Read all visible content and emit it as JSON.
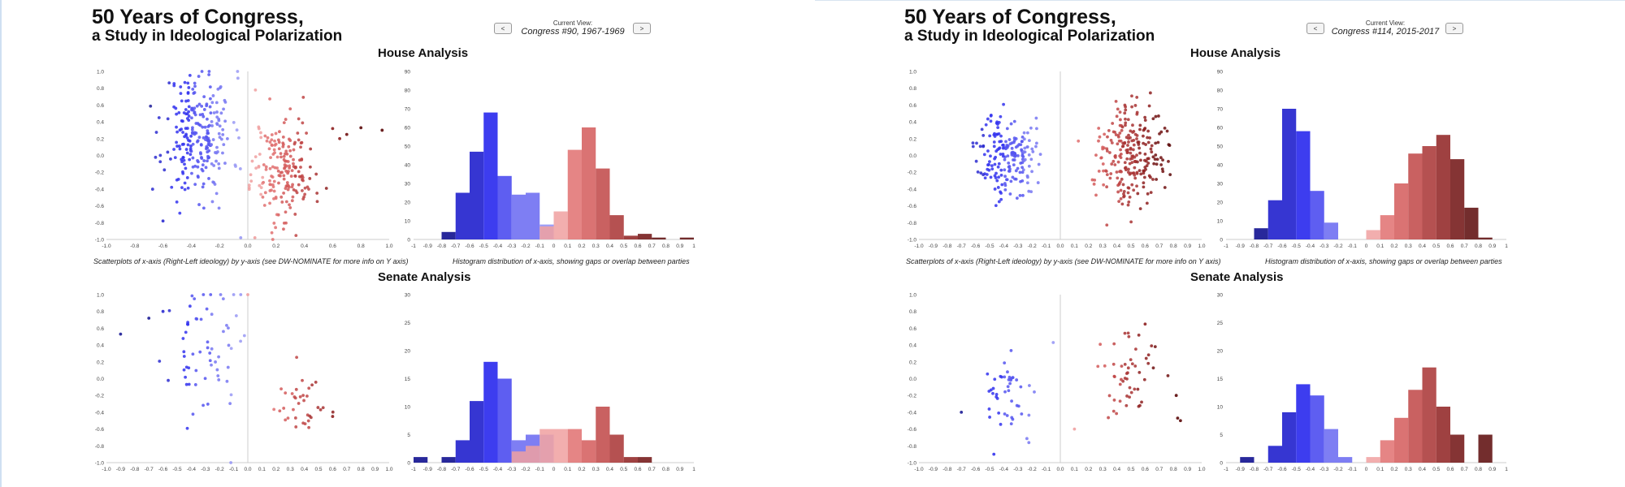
{
  "panels": [
    {
      "title_line1": "50 Years of Congress,",
      "title_line2": "a Study in Ideological Polarization",
      "nav": {
        "prev_label": "<",
        "next_label": ">",
        "current_view_label": "Current View:",
        "current_view_value": "Congress #90, 1967-1969"
      },
      "house_heading": "House Analysis",
      "senate_heading": "Senate Analysis",
      "scatter_caption": "Scatterplots of x-axis (Right-Left ideology) by y-axis (see DW-NOMINATE for more info on Y axis)",
      "hist_caption": "Histogram distribution of x-axis, showing gaps or overlap between parties"
    },
    {
      "title_line1": "50 Years of Congress,",
      "title_line2": "a Study in Ideological Polarization",
      "nav": {
        "prev_label": "<",
        "next_label": ">",
        "current_view_label": "Current View:",
        "current_view_value": "Congress #114, 2015-2017"
      },
      "house_heading": "House Analysis",
      "senate_heading": "Senate Analysis",
      "scatter_caption": "Scatterplots of x-axis (Right-Left ideology) by y-axis (see DW-NOMINATE for more info on Y axis)",
      "hist_caption": "Histogram distribution of x-axis, showing gaps or overlap between parties"
    }
  ],
  "colors": {
    "dem_scale": [
      "#1c1c96",
      "#2b2bd0",
      "#3333ee",
      "#5555f0",
      "#7777f2",
      "#9999f5",
      "#b3b3f8"
    ],
    "rep_scale": [
      "#f0a0a0",
      "#e07070",
      "#d35a5a",
      "#c04545",
      "#a83232",
      "#8e2020",
      "#701010",
      "#5a0808"
    ],
    "axis": "#cccccc"
  },
  "chart_data": [
    {
      "type": "scatter",
      "chamber": "House",
      "congress": "Congress #90, 1967-1969",
      "xlim": [
        -1.0,
        1.0
      ],
      "ylim": [
        -1.0,
        1.0
      ],
      "x_ticks": [
        "-1.0",
        "-0.8",
        "-0.6",
        "-0.4",
        "-0.2",
        "0.0",
        "0.2",
        "0.4",
        "0.6",
        "0.8",
        "1.0"
      ],
      "y_ticks": [
        "1.0",
        "0.8",
        "0.6",
        "0.4",
        "0.2",
        "0.0",
        "-0.2",
        "-0.4",
        "-0.6",
        "-0.8",
        "-1.0"
      ],
      "series": [
        {
          "party": "dem",
          "count": 250,
          "center": [
            -0.35,
            0.25
          ],
          "spread": [
            0.12,
            0.38
          ]
        },
        {
          "party": "rep",
          "count": 190,
          "center": [
            0.25,
            -0.15
          ],
          "spread": [
            0.11,
            0.32
          ]
        },
        {
          "party": "outlier",
          "points": [
            [
              0.6,
              0.32
            ],
            [
              0.65,
              0.2
            ],
            [
              0.8,
              0.33
            ],
            [
              0.95,
              0.3
            ],
            [
              0.7,
              0.25
            ],
            [
              -0.6,
              -0.78
            ],
            [
              0.05,
              -0.98
            ],
            [
              -0.05,
              -0.98
            ]
          ]
        }
      ]
    },
    {
      "type": "bar",
      "chamber": "House",
      "congress": "Congress #90, 1967-1969",
      "ylim": [
        0,
        90
      ],
      "x_ticks": [
        "-1",
        "-0.9",
        "-0.8",
        "-0.7",
        "-0.6",
        "-0.5",
        "-0.4",
        "-0.3",
        "-0.2",
        "-0.1",
        "0",
        "0.1",
        "0.2",
        "0.3",
        "0.4",
        "0.5",
        "0.6",
        "0.7",
        "0.8",
        "0.9",
        "1"
      ],
      "y_ticks": [
        "90",
        "80",
        "70",
        "60",
        "50",
        "40",
        "30",
        "20",
        "10",
        "0"
      ],
      "bars_dem": [
        {
          "x": -0.7,
          "v": 4
        },
        {
          "x": -0.6,
          "v": 25
        },
        {
          "x": -0.5,
          "v": 47
        },
        {
          "x": -0.4,
          "v": 68
        },
        {
          "x": -0.3,
          "v": 34
        },
        {
          "x": -0.2,
          "v": 24
        },
        {
          "x": -0.1,
          "v": 25
        },
        {
          "x": 0.0,
          "v": 8
        }
      ],
      "bars_rep": [
        {
          "x": 0.0,
          "v": 7
        },
        {
          "x": 0.1,
          "v": 15
        },
        {
          "x": 0.2,
          "v": 48
        },
        {
          "x": 0.3,
          "v": 60
        },
        {
          "x": 0.4,
          "v": 38
        },
        {
          "x": 0.5,
          "v": 13
        },
        {
          "x": 0.6,
          "v": 2
        },
        {
          "x": 0.7,
          "v": 3
        },
        {
          "x": 0.8,
          "v": 1
        },
        {
          "x": 1.0,
          "v": 1
        }
      ]
    },
    {
      "type": "scatter",
      "chamber": "Senate",
      "congress": "Congress #90, 1967-1969",
      "xlim": [
        -1.0,
        1.0
      ],
      "ylim": [
        -1.0,
        1.0
      ],
      "x_ticks": [
        "-1.0",
        "-0.9",
        "-0.8",
        "-0.7",
        "-0.6",
        "-0.5",
        "-0.4",
        "-0.3",
        "-0.2",
        "-0.1",
        "0.0",
        "0.1",
        "0.2",
        "0.3",
        "0.4",
        "0.5",
        "0.6",
        "0.7",
        "0.8",
        "0.9",
        "1.0"
      ],
      "y_ticks": [
        "1.0",
        "0.8",
        "0.6",
        "0.4",
        "0.2",
        "0.0",
        "-0.2",
        "-0.4",
        "-0.6",
        "-0.8",
        "-1.0"
      ],
      "series": [
        {
          "party": "dem",
          "count": 60,
          "center": [
            -0.3,
            0.3
          ],
          "spread": [
            0.12,
            0.35
          ]
        },
        {
          "party": "rep",
          "count": 35,
          "center": [
            0.35,
            -0.3
          ],
          "spread": [
            0.1,
            0.18
          ]
        },
        {
          "party": "outlier",
          "points": [
            [
              -0.9,
              0.53
            ],
            [
              -0.7,
              0.72
            ],
            [
              -0.6,
              0.8
            ],
            [
              -0.1,
              1.0
            ],
            [
              -0.05,
              1.0
            ],
            [
              0.0,
              1.0
            ],
            [
              0.6,
              -0.45
            ],
            [
              -0.12,
              -1.0
            ]
          ]
        }
      ]
    },
    {
      "type": "bar",
      "chamber": "Senate",
      "congress": "Congress #90, 1967-1969",
      "ylim": [
        0,
        30
      ],
      "x_ticks": [
        "-1",
        "-0.9",
        "-0.8",
        "-0.7",
        "-0.6",
        "-0.5",
        "-0.4",
        "-0.3",
        "-0.2",
        "-0.1",
        "0",
        "0.1",
        "0.2",
        "0.3",
        "0.4",
        "0.5",
        "0.6",
        "0.7",
        "0.8",
        "0.9",
        "1"
      ],
      "y_ticks": [
        "30",
        "25",
        "20",
        "15",
        "10",
        "5",
        "0"
      ],
      "bars_dem": [
        {
          "x": -0.9,
          "v": 1
        },
        {
          "x": -0.7,
          "v": 1
        },
        {
          "x": -0.6,
          "v": 4
        },
        {
          "x": -0.5,
          "v": 11
        },
        {
          "x": -0.4,
          "v": 18
        },
        {
          "x": -0.3,
          "v": 15
        },
        {
          "x": -0.2,
          "v": 4
        },
        {
          "x": -0.1,
          "v": 5
        },
        {
          "x": 0.0,
          "v": 5
        }
      ],
      "bars_rep": [
        {
          "x": -0.2,
          "v": 2
        },
        {
          "x": -0.1,
          "v": 3
        },
        {
          "x": 0.0,
          "v": 6
        },
        {
          "x": 0.1,
          "v": 6
        },
        {
          "x": 0.2,
          "v": 6
        },
        {
          "x": 0.3,
          "v": 4
        },
        {
          "x": 0.4,
          "v": 10
        },
        {
          "x": 0.5,
          "v": 5
        },
        {
          "x": 0.6,
          "v": 1
        },
        {
          "x": 0.7,
          "v": 1
        }
      ]
    },
    {
      "type": "scatter",
      "chamber": "House",
      "congress": "Congress #114, 2015-2017",
      "xlim": [
        -1.0,
        1.0
      ],
      "ylim": [
        -1.0,
        1.0
      ],
      "x_ticks": [
        "-1.0",
        "-0.9",
        "-0.8",
        "-0.7",
        "-0.6",
        "-0.5",
        "-0.4",
        "-0.3",
        "-0.2",
        "-0.1",
        "0.0",
        "0.1",
        "0.2",
        "0.3",
        "0.4",
        "0.5",
        "0.6",
        "0.7",
        "0.8",
        "0.9",
        "1.0"
      ],
      "y_ticks": [
        "1.0",
        "0.8",
        "0.6",
        "0.4",
        "0.2",
        "0.0",
        "-0.2",
        "-0.4",
        "-0.6",
        "-0.8",
        "-1.0"
      ],
      "series": [
        {
          "party": "dem",
          "count": 190,
          "center": [
            -0.38,
            0.0
          ],
          "spread": [
            0.1,
            0.25
          ]
        },
        {
          "party": "rep",
          "count": 240,
          "center": [
            0.5,
            0.05
          ],
          "spread": [
            0.12,
            0.3
          ]
        }
      ]
    },
    {
      "type": "bar",
      "chamber": "House",
      "congress": "Congress #114, 2015-2017",
      "ylim": [
        0,
        90
      ],
      "x_ticks": [
        "-1",
        "-0.9",
        "-0.8",
        "-0.7",
        "-0.6",
        "-0.5",
        "-0.4",
        "-0.3",
        "-0.2",
        "-0.1",
        "0",
        "0.1",
        "0.2",
        "0.3",
        "0.4",
        "0.5",
        "0.6",
        "0.7",
        "0.8",
        "0.9",
        "1"
      ],
      "y_ticks": [
        "90",
        "80",
        "70",
        "60",
        "50",
        "40",
        "30",
        "20",
        "10",
        "0"
      ],
      "bars_dem": [
        {
          "x": -0.7,
          "v": 6
        },
        {
          "x": -0.6,
          "v": 21
        },
        {
          "x": -0.5,
          "v": 70
        },
        {
          "x": -0.4,
          "v": 58
        },
        {
          "x": -0.3,
          "v": 26
        },
        {
          "x": -0.2,
          "v": 9
        }
      ],
      "bars_rep": [
        {
          "x": 0.1,
          "v": 5
        },
        {
          "x": 0.2,
          "v": 13
        },
        {
          "x": 0.3,
          "v": 30
        },
        {
          "x": 0.4,
          "v": 46
        },
        {
          "x": 0.5,
          "v": 50
        },
        {
          "x": 0.6,
          "v": 56
        },
        {
          "x": 0.7,
          "v": 43
        },
        {
          "x": 0.8,
          "v": 17
        },
        {
          "x": 0.9,
          "v": 1
        }
      ]
    },
    {
      "type": "scatter",
      "chamber": "Senate",
      "congress": "Congress #114, 2015-2017",
      "xlim": [
        -1.0,
        1.0
      ],
      "ylim": [
        -1.0,
        1.0
      ],
      "x_ticks": [
        "-1.0",
        "-0.9",
        "-0.8",
        "-0.7",
        "-0.6",
        "-0.5",
        "-0.4",
        "-0.3",
        "-0.2",
        "-0.1",
        "0.0",
        "0.1",
        "0.2",
        "0.3",
        "0.4",
        "0.5",
        "0.6",
        "0.7",
        "0.8",
        "0.9",
        "1.0"
      ],
      "y_ticks": [
        "1.0",
        "0.8",
        "0.6",
        "0.4",
        "0.2",
        "0.0",
        "-0.2",
        "-0.4",
        "-0.6",
        "-0.8",
        "-1.0"
      ],
      "series": [
        {
          "party": "dem",
          "count": 45,
          "center": [
            -0.35,
            -0.2
          ],
          "spread": [
            0.1,
            0.22
          ]
        },
        {
          "party": "rep",
          "count": 50,
          "center": [
            0.5,
            0.05
          ],
          "spread": [
            0.1,
            0.25
          ]
        },
        {
          "party": "outlier",
          "points": [
            [
              -0.05,
              0.43
            ],
            [
              -0.7,
              -0.4
            ],
            [
              -0.47,
              -0.9
            ],
            [
              0.85,
              -0.5
            ],
            [
              0.83,
              -0.47
            ],
            [
              0.1,
              -0.6
            ],
            [
              0.82,
              -0.2
            ],
            [
              0.6,
              0.65
            ]
          ]
        }
      ]
    },
    {
      "type": "bar",
      "chamber": "Senate",
      "congress": "Congress #114, 2015-2017",
      "ylim": [
        0,
        30
      ],
      "x_ticks": [
        "-1",
        "-0.9",
        "-0.8",
        "-0.7",
        "-0.6",
        "-0.5",
        "-0.4",
        "-0.3",
        "-0.2",
        "-0.1",
        "0",
        "0.1",
        "0.2",
        "0.3",
        "0.4",
        "0.5",
        "0.6",
        "0.7",
        "0.8",
        "0.9",
        "1"
      ],
      "y_ticks": [
        "30",
        "25",
        "20",
        "15",
        "10",
        "5",
        "0"
      ],
      "bars_dem": [
        {
          "x": -0.8,
          "v": 1
        },
        {
          "x": -0.6,
          "v": 3
        },
        {
          "x": -0.5,
          "v": 9
        },
        {
          "x": -0.4,
          "v": 14
        },
        {
          "x": -0.3,
          "v": 12
        },
        {
          "x": -0.2,
          "v": 6
        },
        {
          "x": -0.1,
          "v": 1
        }
      ],
      "bars_rep": [
        {
          "x": 0.1,
          "v": 1
        },
        {
          "x": 0.2,
          "v": 4
        },
        {
          "x": 0.3,
          "v": 8
        },
        {
          "x": 0.4,
          "v": 13
        },
        {
          "x": 0.5,
          "v": 17
        },
        {
          "x": 0.6,
          "v": 10
        },
        {
          "x": 0.7,
          "v": 5
        },
        {
          "x": 0.9,
          "v": 5
        }
      ]
    }
  ]
}
